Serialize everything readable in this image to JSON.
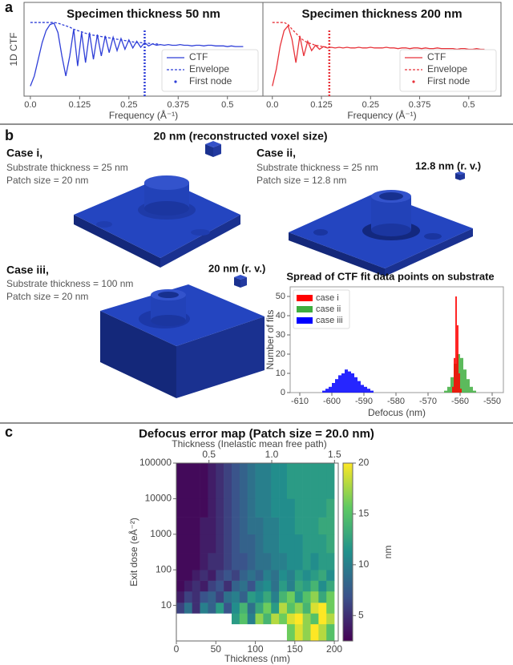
{
  "panel_labels": [
    "a",
    "b",
    "c"
  ],
  "panel_b": {
    "title": "20 nm (reconstructed voxel size)",
    "cases": [
      {
        "name": "Case i,",
        "lines": [
          "Substrate thickness = 25 nm",
          "Patch size = 20 nm"
        ]
      },
      {
        "name": "Case ii,",
        "lines": [
          "Substrate thickness = 25 nm",
          "Patch size = 12.8 nm"
        ],
        "voxel_label": "12.8 nm (r. v.)"
      },
      {
        "name": "Case iii,",
        "lines": [
          "Substrate thickness = 100 nm",
          "Patch size = 20 nm"
        ],
        "voxel_label": "20 nm (r. v.)"
      }
    ]
  },
  "chart_data": [
    {
      "type": "line",
      "title": "Specimen thickness 50 nm",
      "ylabel": "1D CTF",
      "xlabel": "Frequency (Å⁻¹)",
      "x": [
        0,
        0.01,
        0.02,
        0.03,
        0.04,
        0.05,
        0.06,
        0.07,
        0.08,
        0.09,
        0.1,
        0.11,
        0.12,
        0.13,
        0.14,
        0.15,
        0.16,
        0.17,
        0.18,
        0.19,
        0.2,
        0.21,
        0.22,
        0.23,
        0.24,
        0.25,
        0.26,
        0.27,
        0.28,
        0.29,
        0.3,
        0.31,
        0.32,
        0.33,
        0.34,
        0.35,
        0.36,
        0.37,
        0.38,
        0.39,
        0.4,
        0.41,
        0.42,
        0.43,
        0.44,
        0.45,
        0.46,
        0.47,
        0.48,
        0.49,
        0.5,
        0.51,
        0.52,
        0.53,
        0.54
      ],
      "xlim": [
        -0.016,
        0.59
      ],
      "ylim": [
        -0.1,
        1.3
      ],
      "xticks": [
        {
          "value": 0,
          "label": "0.0"
        },
        0.125,
        0.25,
        0.375,
        0.5
      ],
      "series": [
        {
          "name": "CTF",
          "color": "#2f3fd8",
          "style": "solid",
          "values": [
            0.05,
            0.2,
            0.45,
            0.7,
            0.88,
            0.97,
            0.99,
            0.85,
            0.5,
            0.2,
            0.5,
            0.9,
            0.35,
            0.85,
            0.4,
            0.85,
            0.45,
            0.82,
            0.5,
            0.8,
            0.55,
            0.78,
            0.58,
            0.76,
            0.6,
            0.74,
            0.62,
            0.72,
            0.63,
            0.7,
            0.65,
            0.68,
            0.66,
            0.67,
            0.66,
            0.67,
            0.66,
            0.66,
            0.67,
            0.66,
            0.66,
            0.65,
            0.66,
            0.66,
            0.65,
            0.66,
            0.66,
            0.65,
            0.65,
            0.65,
            0.64,
            0.65,
            0.64,
            0.64,
            0.64
          ]
        },
        {
          "name": "Envelope",
          "color": "#2f3fd8",
          "style": "dashed",
          "values": [
            1,
            1,
            1,
            1,
            1,
            1,
            1,
            0.99,
            0.97,
            0.95,
            0.93,
            0.9,
            0.88,
            0.86,
            0.84,
            0.82,
            0.81,
            0.8,
            0.79,
            0.78,
            0.77,
            0.76,
            0.75,
            0.74,
            0.73,
            0.72,
            0.71,
            0.7,
            0.7,
            0.69,
            0.69,
            0.68,
            0.68,
            0.67,
            null,
            null,
            null,
            null,
            null,
            null,
            null,
            null,
            null,
            null,
            null,
            null,
            null,
            null,
            null,
            null,
            null,
            null,
            null,
            null,
            null
          ]
        }
      ],
      "first_node": {
        "name": "First node",
        "x": 0.29,
        "color": "#2f3fd8"
      },
      "legend": "lower right"
    },
    {
      "type": "line",
      "title": "Specimen thickness 200 nm",
      "xlabel": "Frequency (Å⁻¹)",
      "x": [
        0,
        0.01,
        0.02,
        0.03,
        0.04,
        0.05,
        0.06,
        0.07,
        0.08,
        0.09,
        0.1,
        0.11,
        0.12,
        0.13,
        0.14,
        0.15,
        0.16,
        0.17,
        0.18,
        0.19,
        0.2,
        0.21,
        0.22,
        0.23,
        0.24,
        0.25,
        0.26,
        0.27,
        0.28,
        0.29,
        0.3,
        0.31,
        0.32,
        0.33,
        0.34,
        0.35,
        0.36,
        0.37,
        0.38,
        0.39,
        0.4,
        0.41,
        0.42,
        0.43,
        0.44,
        0.45,
        0.46,
        0.47,
        0.48,
        0.49,
        0.5,
        0.51,
        0.52,
        0.53,
        0.54
      ],
      "xlim": [
        -0.024,
        0.582
      ],
      "ylim": [
        -0.1,
        1.3
      ],
      "xticks": [
        {
          "value": 0,
          "label": "0.0"
        },
        0.125,
        0.25,
        0.375,
        0.5
      ],
      "series": [
        {
          "name": "CTF",
          "color": "#e8333a",
          "style": "solid",
          "values": [
            0.05,
            0.3,
            0.65,
            0.88,
            0.95,
            0.75,
            0.4,
            0.8,
            0.5,
            0.72,
            0.58,
            0.66,
            0.6,
            0.64,
            0.62,
            0.63,
            0.62,
            0.63,
            0.62,
            0.63,
            0.62,
            0.62,
            0.63,
            0.62,
            0.62,
            0.63,
            0.62,
            0.62,
            0.62,
            0.63,
            0.62,
            0.62,
            0.61,
            0.62,
            0.62,
            0.61,
            0.62,
            0.62,
            0.61,
            0.62,
            0.61,
            0.61,
            0.62,
            0.61,
            0.61,
            0.61,
            0.61,
            0.6,
            0.61,
            0.61,
            0.6,
            0.6,
            0.61,
            0.6,
            0.6
          ]
        },
        {
          "name": "Envelope",
          "color": "#e8333a",
          "style": "dashed",
          "values": [
            1,
            1,
            1,
            1,
            0.97,
            0.9,
            0.84,
            0.78,
            0.73,
            0.7,
            0.68,
            0.66,
            0.65,
            0.64,
            0.63,
            null,
            null,
            null,
            null,
            null,
            null,
            null,
            null,
            null,
            null,
            null,
            null,
            null,
            null,
            null,
            null,
            null,
            null,
            null,
            null,
            null,
            null,
            null,
            null,
            null,
            null,
            null,
            null,
            null,
            null,
            null,
            null,
            null,
            null,
            null,
            null,
            null,
            null,
            null,
            null
          ]
        }
      ],
      "first_node": {
        "name": "First node",
        "x": 0.145,
        "color": "#e8333a"
      },
      "legend": "lower right"
    },
    {
      "type": "histogram",
      "title": "Spread of CTF fit data points on substrate",
      "xlabel": "Defocus (nm)",
      "ylabel": "Number of fits",
      "xlim": [
        -613,
        -546.5
      ],
      "ylim": [
        0,
        55
      ],
      "xticks": [
        -610,
        -600,
        -590,
        -580,
        -570,
        -560,
        -550
      ],
      "yticks": [
        0,
        10,
        20,
        30,
        40,
        50
      ],
      "legend": "upper left",
      "series": [
        {
          "name": "case i",
          "color": "#ff0000",
          "bins": [
            -562.5,
            -562,
            -561.5,
            -561,
            -560.5,
            -560,
            -559.5
          ],
          "counts": [
            3,
            18,
            50,
            35,
            10,
            2
          ]
        },
        {
          "name": "case ii",
          "color": "#3fae3f",
          "bins": [
            -565,
            -564,
            -563,
            -562,
            -561,
            -560,
            -559,
            -558,
            -557,
            -556,
            -555
          ],
          "counts": [
            1,
            3,
            8,
            15,
            20,
            18,
            12,
            7,
            3,
            1
          ]
        },
        {
          "name": "case iii",
          "color": "#0000ff",
          "bins": [
            -603,
            -602,
            -601,
            -600,
            -599,
            -598,
            -597,
            -596,
            -595,
            -594,
            -593,
            -592,
            -591,
            -590,
            -589,
            -588,
            -587
          ],
          "counts": [
            1,
            2,
            3,
            5,
            7,
            9,
            10,
            12,
            11,
            10,
            8,
            6,
            4,
            3,
            2,
            1
          ]
        }
      ]
    },
    {
      "type": "heatmap",
      "title": "Defocus error map (Patch size = 20.0 nm)",
      "xlabel": "Thickness (nm)",
      "ylabel": "Exit dose (eÅ⁻²)",
      "x2label": "Thickness (Inelastic mean free path)",
      "clabel": "nm",
      "xlim": [
        0,
        205
      ],
      "x2lim": [
        0.24,
        1.53
      ],
      "ylim": [
        1,
        100000
      ],
      "log_y": true,
      "xticks": [
        0,
        50,
        100,
        150,
        200
      ],
      "x2ticks": [
        0.5,
        {
          "value": 1,
          "label": "1.0"
        },
        1.5
      ],
      "yticks": [
        10,
        100,
        1000,
        10000,
        100000
      ],
      "x_edges": [
        0,
        10,
        20,
        30,
        40,
        50,
        60,
        70,
        80,
        90,
        100,
        110,
        120,
        130,
        140,
        150,
        160,
        170,
        180,
        190,
        200
      ],
      "y_edges": [
        1,
        3,
        6,
        12,
        25,
        50,
        100,
        300,
        1000,
        3000,
        10000,
        100000
      ],
      "values": [
        [
          null,
          null,
          null,
          null,
          null,
          null,
          null,
          null,
          null,
          null,
          null,
          null,
          null,
          null,
          16,
          19,
          17,
          20,
          18,
          15
        ],
        [
          null,
          null,
          null,
          null,
          null,
          null,
          null,
          12,
          15,
          10,
          17,
          14,
          18,
          16,
          19,
          20,
          17,
          15,
          20,
          18
        ],
        [
          6,
          9,
          5,
          10,
          8,
          12,
          7,
          11,
          14,
          9,
          13,
          16,
          12,
          18,
          15,
          17,
          14,
          19,
          20,
          16
        ],
        [
          4,
          6,
          5,
          7,
          8,
          6,
          9,
          10,
          8,
          12,
          11,
          13,
          10,
          14,
          16,
          12,
          15,
          17,
          13,
          16
        ],
        [
          3,
          4,
          5,
          4,
          6,
          7,
          5,
          8,
          9,
          7,
          10,
          11,
          9,
          12,
          10,
          13,
          12,
          14,
          11,
          13
        ],
        [
          3,
          3,
          4,
          5,
          4,
          6,
          7,
          6,
          8,
          9,
          8,
          10,
          9,
          11,
          10,
          12,
          11,
          12,
          13,
          11
        ],
        [
          3,
          3,
          3,
          4,
          5,
          5,
          6,
          7,
          7,
          8,
          9,
          9,
          10,
          10,
          11,
          11,
          12,
          11,
          12,
          12
        ],
        [
          3,
          3,
          3,
          4,
          4,
          5,
          6,
          7,
          8,
          8,
          9,
          10,
          10,
          11,
          11,
          11,
          12,
          12,
          12,
          13
        ],
        [
          3,
          3,
          3,
          4,
          4,
          5,
          6,
          7,
          8,
          9,
          9,
          10,
          10,
          11,
          11,
          12,
          12,
          12,
          13,
          13
        ],
        [
          3,
          3,
          3,
          3,
          4,
          5,
          6,
          7,
          8,
          9,
          10,
          10,
          11,
          11,
          11,
          12,
          12,
          12,
          12,
          13
        ],
        [
          3,
          3,
          3,
          3,
          4,
          5,
          6,
          7,
          8,
          9,
          10,
          10,
          11,
          11,
          12,
          12,
          12,
          12,
          12,
          12
        ]
      ],
      "colormap": [
        "#440154",
        "#3b528b",
        "#21918c",
        "#5ec962",
        "#fde725"
      ],
      "clim": [
        2.5,
        20
      ],
      "cticks": [
        5,
        10,
        15,
        20
      ]
    }
  ]
}
